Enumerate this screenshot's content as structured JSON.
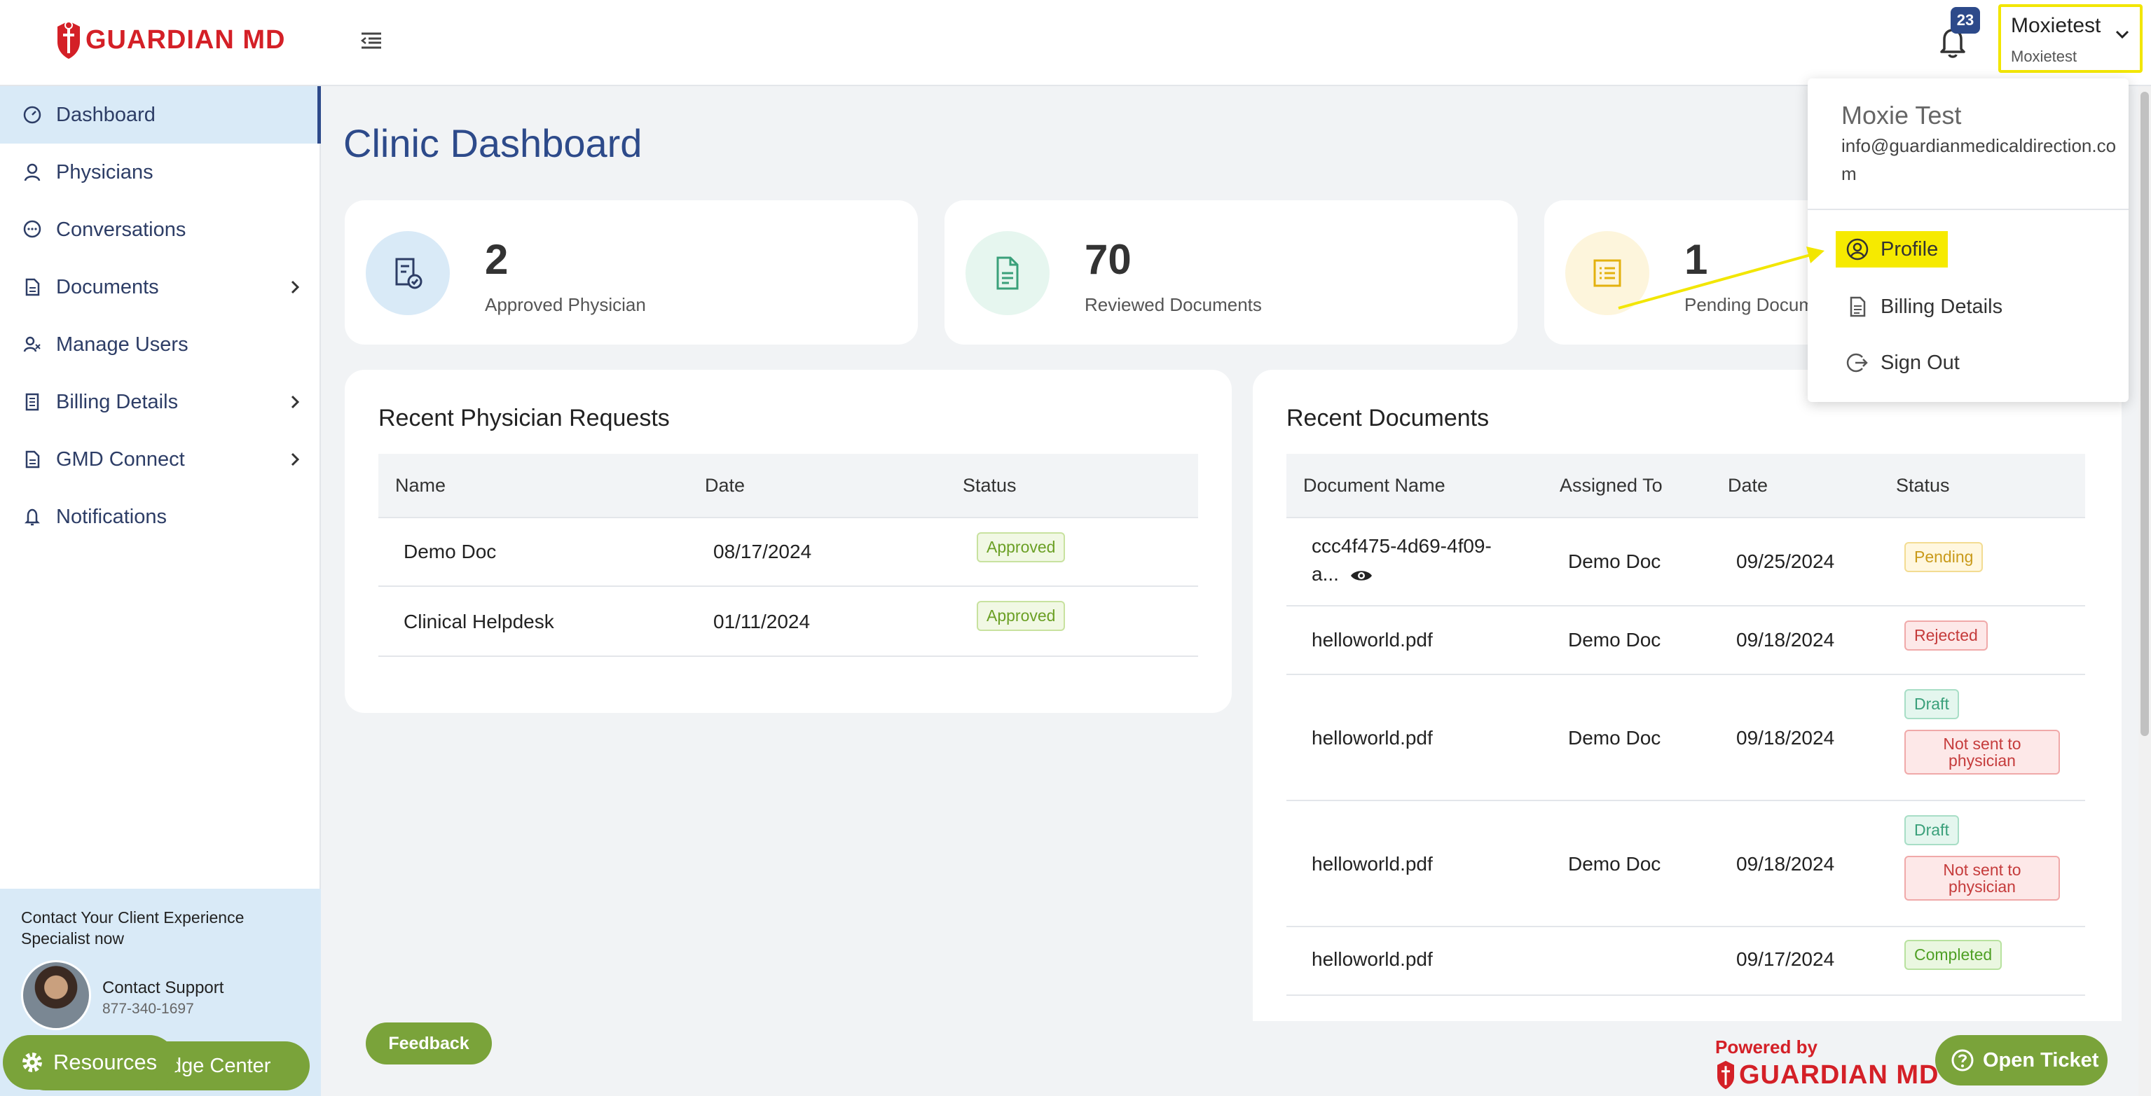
{
  "header": {
    "logo_text": "GUARDIAN MD",
    "notification_count": "23",
    "user_name": "Moxietest",
    "user_sub": "Moxietest"
  },
  "sidebar": {
    "items": [
      {
        "label": "Dashboard",
        "icon": "dashboard-icon"
      },
      {
        "label": "Physicians",
        "icon": "person-icon"
      },
      {
        "label": "Conversations",
        "icon": "chat-icon"
      },
      {
        "label": "Documents",
        "icon": "document-icon"
      },
      {
        "label": "Manage Users",
        "icon": "users-icon"
      },
      {
        "label": "Billing Details",
        "icon": "billing-icon"
      },
      {
        "label": "GMD Connect",
        "icon": "document-icon"
      },
      {
        "label": "Notifications",
        "icon": "bell-icon"
      }
    ],
    "support": {
      "heading": "Contact Your Client Experience Specialist now",
      "label": "Contact Support",
      "phone": "877-340-1697",
      "knowledge_button": "Visit Knowledge Center"
    },
    "resources_button": "Resources"
  },
  "main": {
    "title": "Clinic Dashboard",
    "stats": [
      {
        "value": "2",
        "caption": "Approved Physician",
        "color": "#d9eaf7"
      },
      {
        "value": "70",
        "caption": "Reviewed Documents",
        "color": "#e6f6ef"
      },
      {
        "value": "1",
        "caption": "Pending Documents",
        "color": "#fdf5dc"
      }
    ],
    "physician_requests": {
      "title": "Recent Physician Requests",
      "columns": [
        "Name",
        "Date",
        "Status"
      ],
      "rows": [
        {
          "name": "Demo Doc",
          "date": "08/17/2024",
          "status": "Approved"
        },
        {
          "name": "Clinical Helpdesk",
          "date": "01/11/2024",
          "status": "Approved"
        }
      ]
    },
    "recent_documents": {
      "title": "Recent Documents",
      "columns": [
        "Document Name",
        "Assigned To",
        "Date",
        "Status"
      ],
      "rows": [
        {
          "name_line1": "ccc4f475-4d69-4f09-",
          "name_line2": "a...",
          "assigned": "Demo Doc",
          "date": "09/25/2024",
          "status": "Pending"
        },
        {
          "name": "helloworld.pdf",
          "assigned": "Demo Doc",
          "date": "09/18/2024",
          "status": "Rejected"
        },
        {
          "name": "helloworld.pdf",
          "assigned": "Demo Doc",
          "date": "09/18/2024",
          "status": "Draft",
          "status2_line1": "Not sent to",
          "status2_line2": "physician"
        },
        {
          "name": "helloworld.pdf",
          "assigned": "Demo Doc",
          "date": "09/18/2024",
          "status": "Draft",
          "status2_line1": "Not sent to",
          "status2_line2": "physician"
        },
        {
          "name": "helloworld.pdf",
          "assigned": "",
          "date": "09/17/2024",
          "status": "Completed"
        }
      ]
    }
  },
  "footer": {
    "feedback_button": "Feedback",
    "powered_by": "Powered by",
    "powered_brand": "GUARDIAN MD",
    "ticket_button": "Open Ticket"
  },
  "user_menu": {
    "name": "Moxie Test",
    "email": "info@guardianmedicaldirection.com",
    "items": [
      {
        "label": "Profile",
        "icon": "user-circle-icon"
      },
      {
        "label": "Billing Details",
        "icon": "document-icon"
      },
      {
        "label": "Sign Out",
        "icon": "sign-out-icon"
      }
    ]
  },
  "colors": {
    "brand_red": "#d42027",
    "navy": "#2d4a8a",
    "green": "#7aa33a",
    "highlight_yellow": "#f6ea00"
  }
}
